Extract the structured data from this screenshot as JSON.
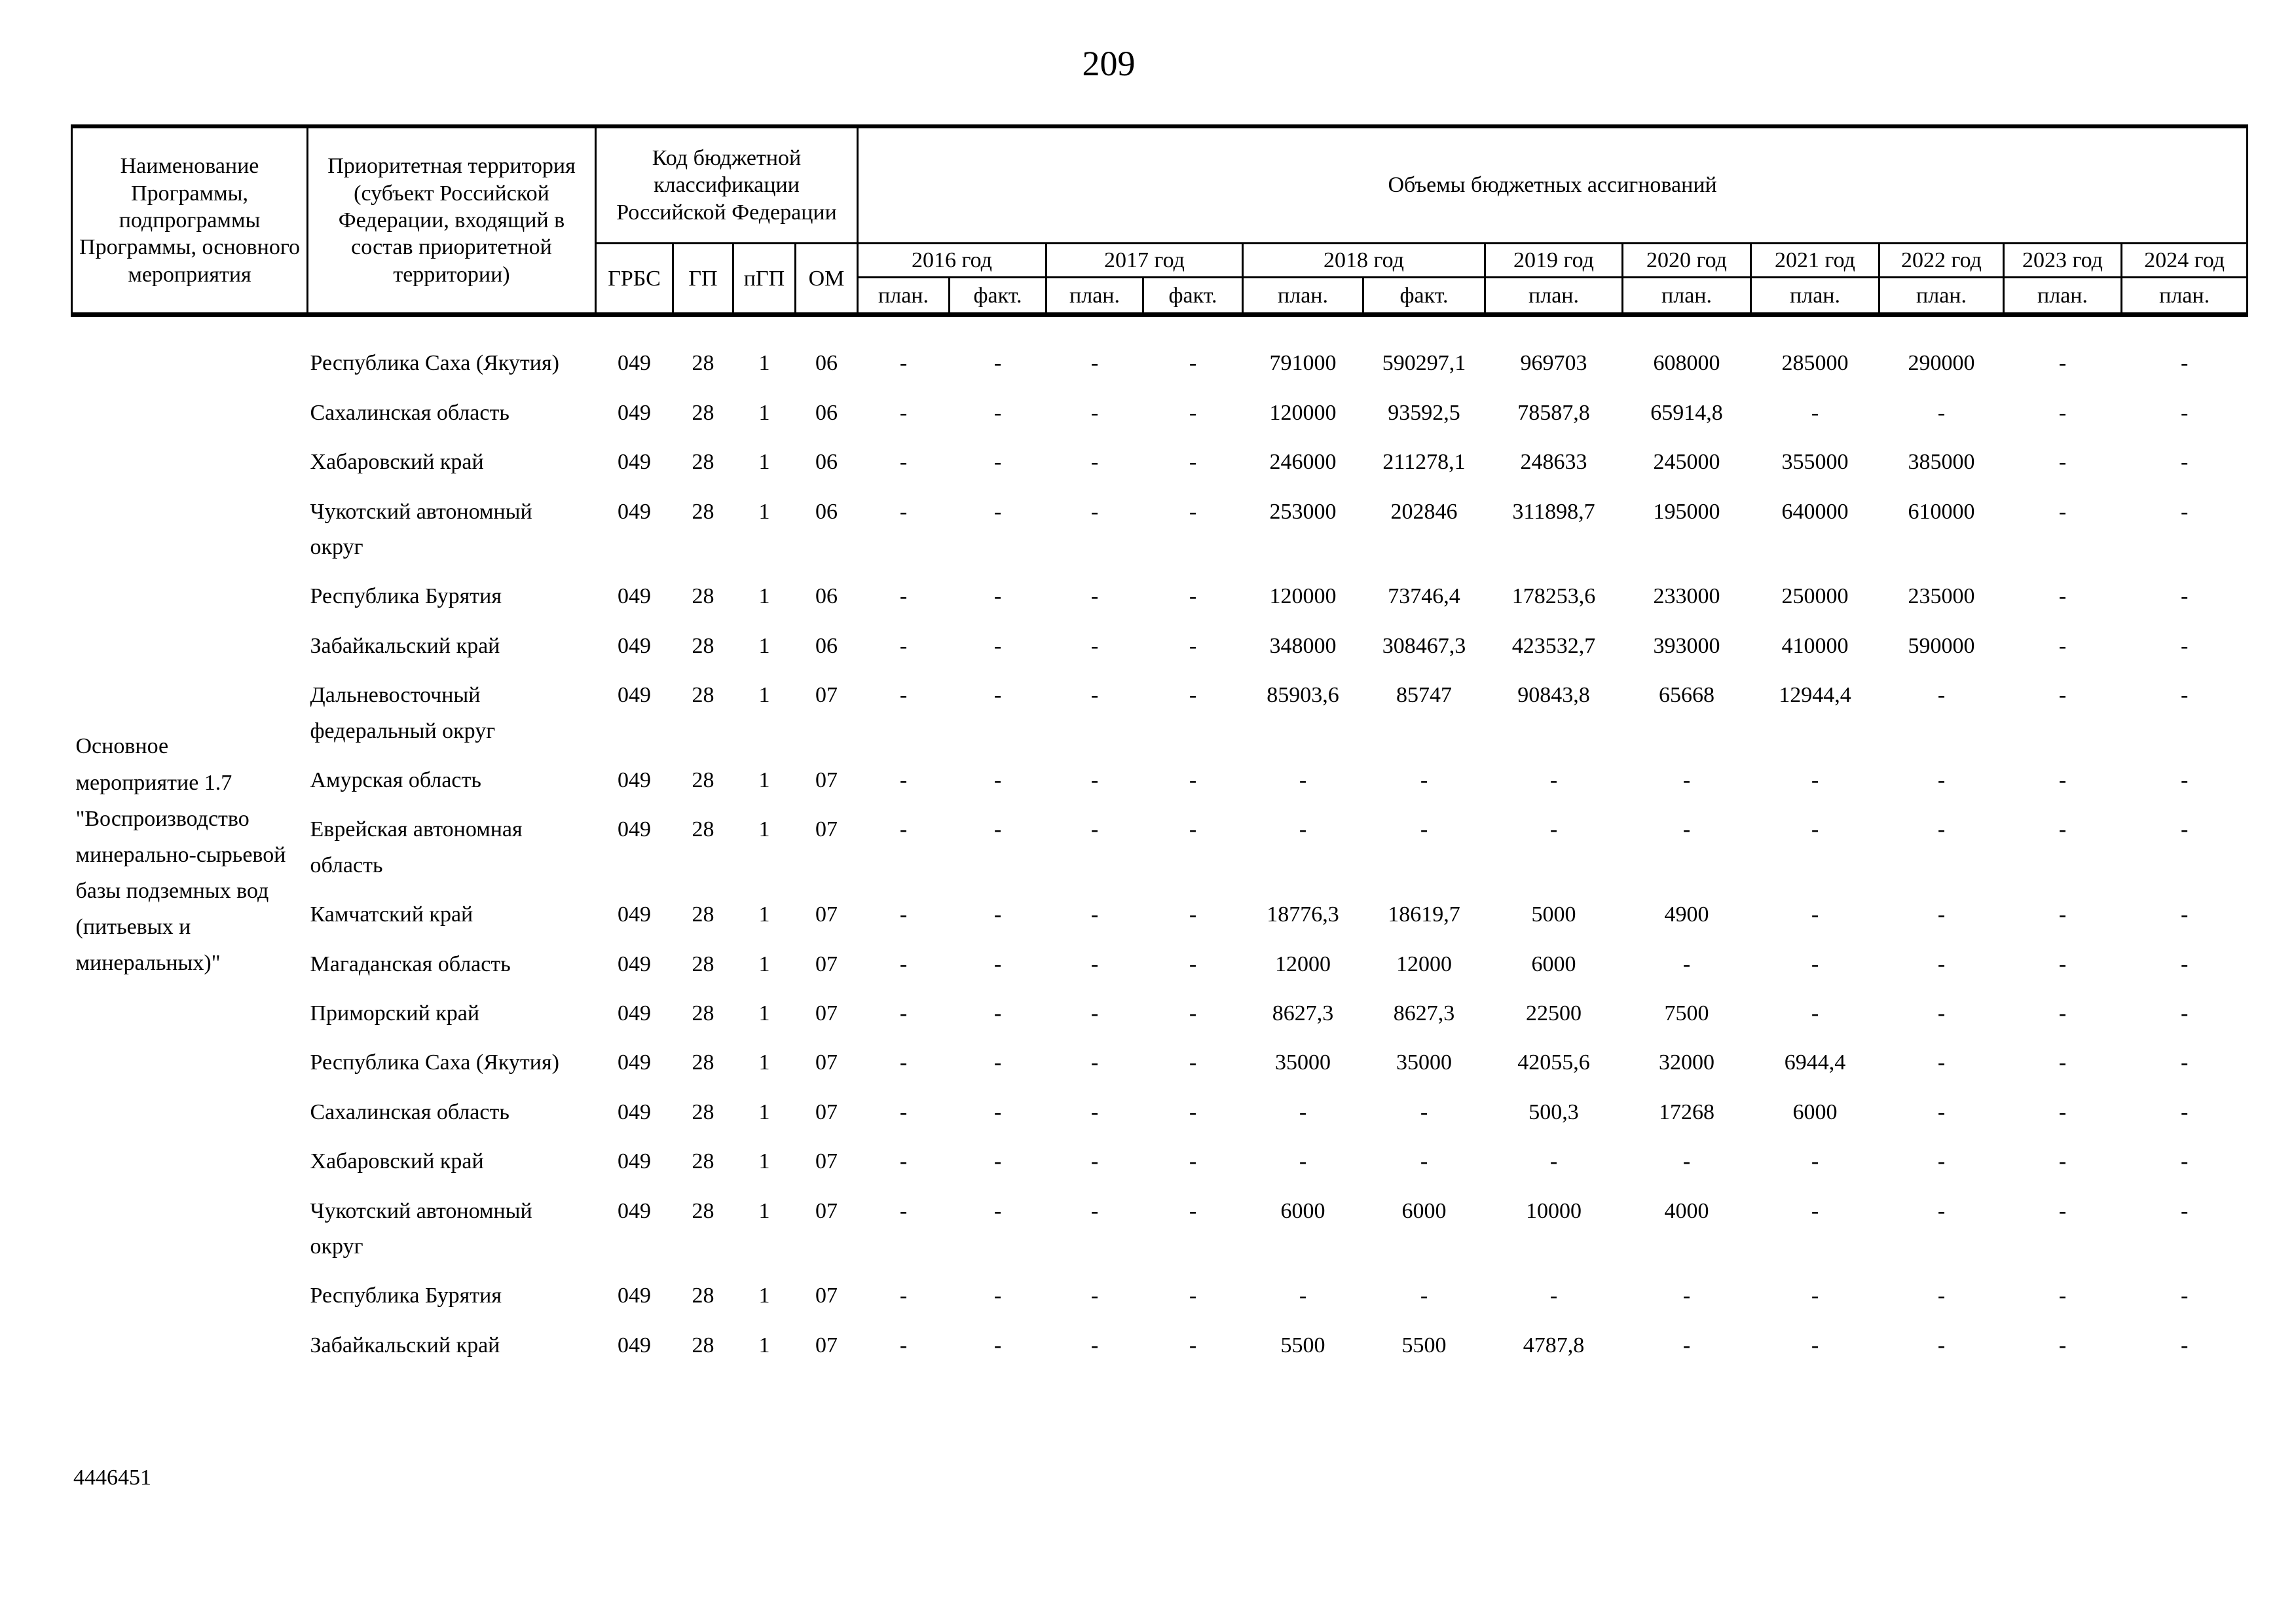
{
  "page": {
    "number": "209",
    "footer_code": "4446451"
  },
  "colors": {
    "ink": "#000000",
    "paper": "#ffffff"
  },
  "table": {
    "header": {
      "col1": "Наименование Программы, подпрограммы Программы, основного мероприятия",
      "col2": "Приоритетная территория (субъект Российской Федерации, входящий в состав приоритетной территории)",
      "col3": "Код бюджетной классификации Российской Федерации",
      "col4": "Объемы бюджетных ассигнований",
      "code_subcols": [
        "ГРБС",
        "ГП",
        "пГП",
        "ОМ"
      ],
      "years": [
        {
          "label": "2016 год",
          "sub": [
            "план.",
            "факт."
          ]
        },
        {
          "label": "2017 год",
          "sub": [
            "план.",
            "факт."
          ]
        },
        {
          "label": "2018 год",
          "sub": [
            "план.",
            "факт."
          ]
        },
        {
          "label": "2019 год",
          "sub": [
            "план."
          ]
        },
        {
          "label": "2020 год",
          "sub": [
            "план."
          ]
        },
        {
          "label": "2021 год",
          "sub": [
            "план."
          ]
        },
        {
          "label": "2022 год",
          "sub": [
            "план."
          ]
        },
        {
          "label": "2023 год",
          "sub": [
            "план."
          ]
        },
        {
          "label": "2024 год",
          "sub": [
            "план."
          ]
        }
      ]
    },
    "program_name": "Основное мероприятие 1.7 \"Воспроизводство минерально-сырьевой базы подземных вод (питьевых и минеральных)\"",
    "rows": [
      {
        "territory": "Республика Саха (Якутия)",
        "grbs": "049",
        "gp": "28",
        "pgp": "1",
        "om": "06",
        "values": [
          "-",
          "-",
          "-",
          "-",
          "791000",
          "590297,1",
          "969703",
          "608000",
          "285000",
          "290000",
          "-",
          "-"
        ]
      },
      {
        "territory": "Сахалинская область",
        "grbs": "049",
        "gp": "28",
        "pgp": "1",
        "om": "06",
        "values": [
          "-",
          "-",
          "-",
          "-",
          "120000",
          "93592,5",
          "78587,8",
          "65914,8",
          "-",
          "-",
          "-",
          "-"
        ]
      },
      {
        "territory": "Хабаровский край",
        "grbs": "049",
        "gp": "28",
        "pgp": "1",
        "om": "06",
        "values": [
          "-",
          "-",
          "-",
          "-",
          "246000",
          "211278,1",
          "248633",
          "245000",
          "355000",
          "385000",
          "-",
          "-"
        ]
      },
      {
        "territory": "Чукотский автономный округ",
        "grbs": "049",
        "gp": "28",
        "pgp": "1",
        "om": "06",
        "values": [
          "-",
          "-",
          "-",
          "-",
          "253000",
          "202846",
          "311898,7",
          "195000",
          "640000",
          "610000",
          "-",
          "-"
        ]
      },
      {
        "territory": "Республика Бурятия",
        "grbs": "049",
        "gp": "28",
        "pgp": "1",
        "om": "06",
        "values": [
          "-",
          "-",
          "-",
          "-",
          "120000",
          "73746,4",
          "178253,6",
          "233000",
          "250000",
          "235000",
          "-",
          "-"
        ]
      },
      {
        "territory": "Забайкальский край",
        "grbs": "049",
        "gp": "28",
        "pgp": "1",
        "om": "06",
        "values": [
          "-",
          "-",
          "-",
          "-",
          "348000",
          "308467,3",
          "423532,7",
          "393000",
          "410000",
          "590000",
          "-",
          "-"
        ]
      },
      {
        "territory": "Дальневосточный федеральный округ",
        "grbs": "049",
        "gp": "28",
        "pgp": "1",
        "om": "07",
        "values": [
          "-",
          "-",
          "-",
          "-",
          "85903,6",
          "85747",
          "90843,8",
          "65668",
          "12944,4",
          "-",
          "-",
          "-"
        ]
      },
      {
        "territory": "Амурская область",
        "grbs": "049",
        "gp": "28",
        "pgp": "1",
        "om": "07",
        "values": [
          "-",
          "-",
          "-",
          "-",
          "-",
          "-",
          "-",
          "-",
          "-",
          "-",
          "-",
          "-"
        ]
      },
      {
        "territory": "Еврейская автономная область",
        "grbs": "049",
        "gp": "28",
        "pgp": "1",
        "om": "07",
        "values": [
          "-",
          "-",
          "-",
          "-",
          "-",
          "-",
          "-",
          "-",
          "-",
          "-",
          "-",
          "-"
        ]
      },
      {
        "territory": "Камчатский край",
        "grbs": "049",
        "gp": "28",
        "pgp": "1",
        "om": "07",
        "values": [
          "-",
          "-",
          "-",
          "-",
          "18776,3",
          "18619,7",
          "5000",
          "4900",
          "-",
          "-",
          "-",
          "-"
        ]
      },
      {
        "territory": "Магаданская область",
        "grbs": "049",
        "gp": "28",
        "pgp": "1",
        "om": "07",
        "values": [
          "-",
          "-",
          "-",
          "-",
          "12000",
          "12000",
          "6000",
          "-",
          "-",
          "-",
          "-",
          "-"
        ]
      },
      {
        "territory": "Приморский край",
        "grbs": "049",
        "gp": "28",
        "pgp": "1",
        "om": "07",
        "values": [
          "-",
          "-",
          "-",
          "-",
          "8627,3",
          "8627,3",
          "22500",
          "7500",
          "-",
          "-",
          "-",
          "-"
        ]
      },
      {
        "territory": "Республика Саха (Якутия)",
        "grbs": "049",
        "gp": "28",
        "pgp": "1",
        "om": "07",
        "values": [
          "-",
          "-",
          "-",
          "-",
          "35000",
          "35000",
          "42055,6",
          "32000",
          "6944,4",
          "-",
          "-",
          "-"
        ]
      },
      {
        "territory": "Сахалинская область",
        "grbs": "049",
        "gp": "28",
        "pgp": "1",
        "om": "07",
        "values": [
          "-",
          "-",
          "-",
          "-",
          "-",
          "-",
          "500,3",
          "17268",
          "6000",
          "-",
          "-",
          "-"
        ]
      },
      {
        "territory": "Хабаровский край",
        "grbs": "049",
        "gp": "28",
        "pgp": "1",
        "om": "07",
        "values": [
          "-",
          "-",
          "-",
          "-",
          "-",
          "-",
          "-",
          "-",
          "-",
          "-",
          "-",
          "-"
        ]
      },
      {
        "territory": "Чукотский автономный округ",
        "grbs": "049",
        "gp": "28",
        "pgp": "1",
        "om": "07",
        "values": [
          "-",
          "-",
          "-",
          "-",
          "6000",
          "6000",
          "10000",
          "4000",
          "-",
          "-",
          "-",
          "-"
        ]
      },
      {
        "territory": "Республика Бурятия",
        "grbs": "049",
        "gp": "28",
        "pgp": "1",
        "om": "07",
        "values": [
          "-",
          "-",
          "-",
          "-",
          "-",
          "-",
          "-",
          "-",
          "-",
          "-",
          "-",
          "-"
        ]
      },
      {
        "territory": "Забайкальский край",
        "grbs": "049",
        "gp": "28",
        "pgp": "1",
        "om": "07",
        "values": [
          "-",
          "-",
          "-",
          "-",
          "5500",
          "5500",
          "4787,8",
          "-",
          "-",
          "-",
          "-",
          "-"
        ]
      }
    ]
  }
}
